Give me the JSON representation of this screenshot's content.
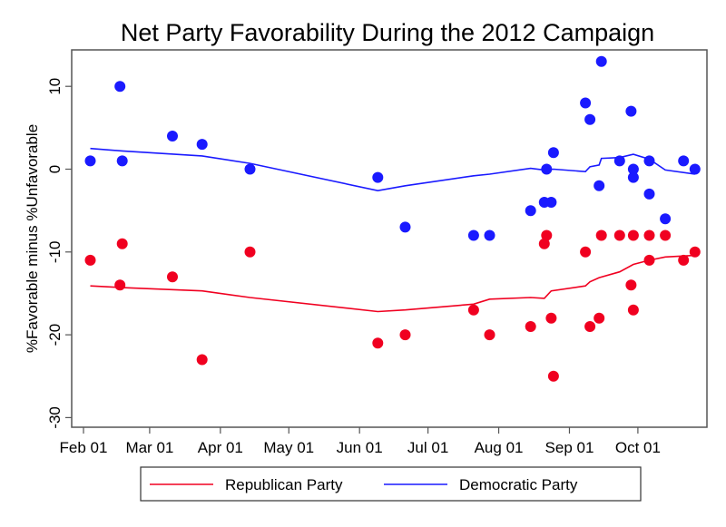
{
  "chart_data": {
    "type": "scatter",
    "title": "Net Party Favorability During the 2012 Campaign",
    "xlabel": "",
    "ylabel": "%Favorable minus %Unfavorable",
    "x_units": "days since Feb 01 2012",
    "xlim": [
      -5,
      273
    ],
    "ylim": [
      -31.5,
      14.5
    ],
    "grid": false,
    "legend_position": "bottom",
    "x_ticks": [
      {
        "value": 0,
        "label": "Feb 01"
      },
      {
        "value": 29,
        "label": "Mar 01"
      },
      {
        "value": 60,
        "label": "Apr 01"
      },
      {
        "value": 90,
        "label": "May 01"
      },
      {
        "value": 121,
        "label": "Jun 01"
      },
      {
        "value": 151,
        "label": "Jul 01"
      },
      {
        "value": 182,
        "label": "Aug 01"
      },
      {
        "value": 213,
        "label": "Sep 01"
      },
      {
        "value": 243,
        "label": "Oct 01"
      }
    ],
    "y_ticks": [
      {
        "value": 10,
        "label": "10"
      },
      {
        "value": 0,
        "label": "0"
      },
      {
        "value": -10,
        "label": "-10"
      },
      {
        "value": -20,
        "label": "-20"
      },
      {
        "value": -30,
        "label": "-30"
      }
    ],
    "series": [
      {
        "name": "Republican Party",
        "color": "#f00020",
        "points": [
          {
            "x": 3,
            "y": -11
          },
          {
            "x": 16,
            "y": -14
          },
          {
            "x": 17,
            "y": -9
          },
          {
            "x": 39,
            "y": -13
          },
          {
            "x": 52,
            "y": -23
          },
          {
            "x": 73,
            "y": -10
          },
          {
            "x": 129,
            "y": -21
          },
          {
            "x": 141,
            "y": -20
          },
          {
            "x": 171,
            "y": -17
          },
          {
            "x": 178,
            "y": -20
          },
          {
            "x": 196,
            "y": -19
          },
          {
            "x": 202,
            "y": -9
          },
          {
            "x": 203,
            "y": -8
          },
          {
            "x": 205,
            "y": -18
          },
          {
            "x": 206,
            "y": -25
          },
          {
            "x": 220,
            "y": -10
          },
          {
            "x": 222,
            "y": -19
          },
          {
            "x": 226,
            "y": -18
          },
          {
            "x": 227,
            "y": -8
          },
          {
            "x": 235,
            "y": -8
          },
          {
            "x": 240,
            "y": -14
          },
          {
            "x": 241,
            "y": -8
          },
          {
            "x": 241,
            "y": -17
          },
          {
            "x": 248,
            "y": -8
          },
          {
            "x": 248,
            "y": -11
          },
          {
            "x": 255,
            "y": -8
          },
          {
            "x": 263,
            "y": -11
          },
          {
            "x": 268,
            "y": -10
          }
        ],
        "trend": [
          {
            "x": 3,
            "y": -14.1
          },
          {
            "x": 17,
            "y": -14.3
          },
          {
            "x": 52,
            "y": -14.7
          },
          {
            "x": 73,
            "y": -15.5
          },
          {
            "x": 129,
            "y": -17.2
          },
          {
            "x": 141,
            "y": -17.0
          },
          {
            "x": 171,
            "y": -16.3
          },
          {
            "x": 178,
            "y": -15.7
          },
          {
            "x": 196,
            "y": -15.5
          },
          {
            "x": 202,
            "y": -15.6
          },
          {
            "x": 205,
            "y": -14.7
          },
          {
            "x": 220,
            "y": -14.1
          },
          {
            "x": 222,
            "y": -13.6
          },
          {
            "x": 226,
            "y": -13.1
          },
          {
            "x": 235,
            "y": -12.4
          },
          {
            "x": 241,
            "y": -11.5
          },
          {
            "x": 248,
            "y": -11.0
          },
          {
            "x": 255,
            "y": -10.6
          },
          {
            "x": 268,
            "y": -10.4
          }
        ]
      },
      {
        "name": "Democratic Party",
        "color": "#1a1aff",
        "points": [
          {
            "x": 3,
            "y": 1
          },
          {
            "x": 16,
            "y": 10
          },
          {
            "x": 17,
            "y": 1
          },
          {
            "x": 39,
            "y": 4
          },
          {
            "x": 52,
            "y": 3
          },
          {
            "x": 73,
            "y": 0
          },
          {
            "x": 129,
            "y": -1
          },
          {
            "x": 141,
            "y": -7
          },
          {
            "x": 171,
            "y": -8
          },
          {
            "x": 178,
            "y": -8
          },
          {
            "x": 196,
            "y": -5
          },
          {
            "x": 202,
            "y": -4
          },
          {
            "x": 203,
            "y": 0
          },
          {
            "x": 205,
            "y": -4
          },
          {
            "x": 206,
            "y": 2
          },
          {
            "x": 220,
            "y": 8
          },
          {
            "x": 222,
            "y": 6
          },
          {
            "x": 226,
            "y": -2
          },
          {
            "x": 227,
            "y": 13
          },
          {
            "x": 235,
            "y": 1
          },
          {
            "x": 240,
            "y": 7
          },
          {
            "x": 241,
            "y": 0
          },
          {
            "x": 241,
            "y": -1
          },
          {
            "x": 248,
            "y": 1
          },
          {
            "x": 248,
            "y": -3
          },
          {
            "x": 255,
            "y": -6
          },
          {
            "x": 263,
            "y": 1
          },
          {
            "x": 268,
            "y": 0
          }
        ],
        "trend": [
          {
            "x": 3,
            "y": 2.5
          },
          {
            "x": 17,
            "y": 2.2
          },
          {
            "x": 52,
            "y": 1.6
          },
          {
            "x": 73,
            "y": 0.7
          },
          {
            "x": 129,
            "y": -2.6
          },
          {
            "x": 141,
            "y": -2.0
          },
          {
            "x": 171,
            "y": -0.8
          },
          {
            "x": 178,
            "y": -0.6
          },
          {
            "x": 196,
            "y": 0.1
          },
          {
            "x": 202,
            "y": -0.1
          },
          {
            "x": 206,
            "y": 0.0
          },
          {
            "x": 220,
            "y": -0.3
          },
          {
            "x": 222,
            "y": 0.3
          },
          {
            "x": 226,
            "y": 0.5
          },
          {
            "x": 227,
            "y": 1.3
          },
          {
            "x": 235,
            "y": 1.4
          },
          {
            "x": 241,
            "y": 1.8
          },
          {
            "x": 248,
            "y": 1.2
          },
          {
            "x": 255,
            "y": -0.1
          },
          {
            "x": 268,
            "y": -0.6
          }
        ]
      }
    ]
  }
}
